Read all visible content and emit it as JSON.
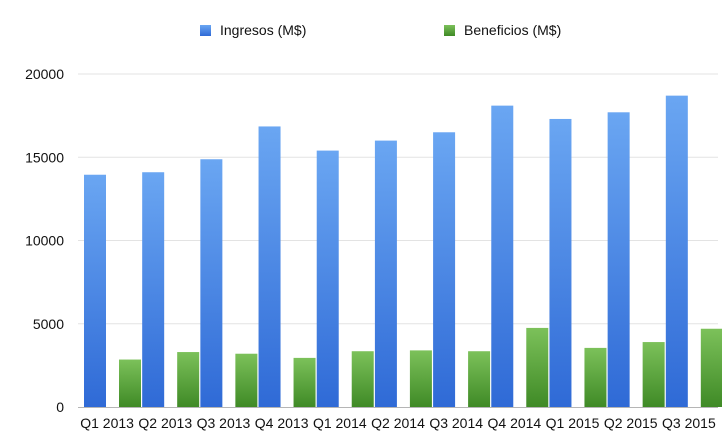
{
  "chart_data": {
    "type": "bar",
    "title": "",
    "xlabel": "",
    "ylabel": "",
    "ylim": [
      0,
      20000
    ],
    "yticks": [
      0,
      5000,
      10000,
      15000,
      20000
    ],
    "grid": true,
    "legend_position": "top-center",
    "categories": [
      "Q1 2013",
      "Q2 2013",
      "Q3 2013",
      "Q4 2013",
      "Q1 2014",
      "Q2 2014",
      "Q3 2014",
      "Q4 2014",
      "Q1 2015",
      "Q2 2015",
      "Q3 2015"
    ],
    "series": [
      {
        "name": "Ingresos (M$)",
        "color": "#3f7fe0",
        "values": [
          13950,
          14100,
          14880,
          16850,
          15400,
          16000,
          16500,
          18100,
          17300,
          17700,
          18700
        ]
      },
      {
        "name": "Beneficios (M$)",
        "color": "#5aa43c",
        "values": [
          2850,
          3300,
          3200,
          2950,
          3350,
          3400,
          3350,
          4750,
          3550,
          3900,
          4700
        ]
      }
    ]
  }
}
